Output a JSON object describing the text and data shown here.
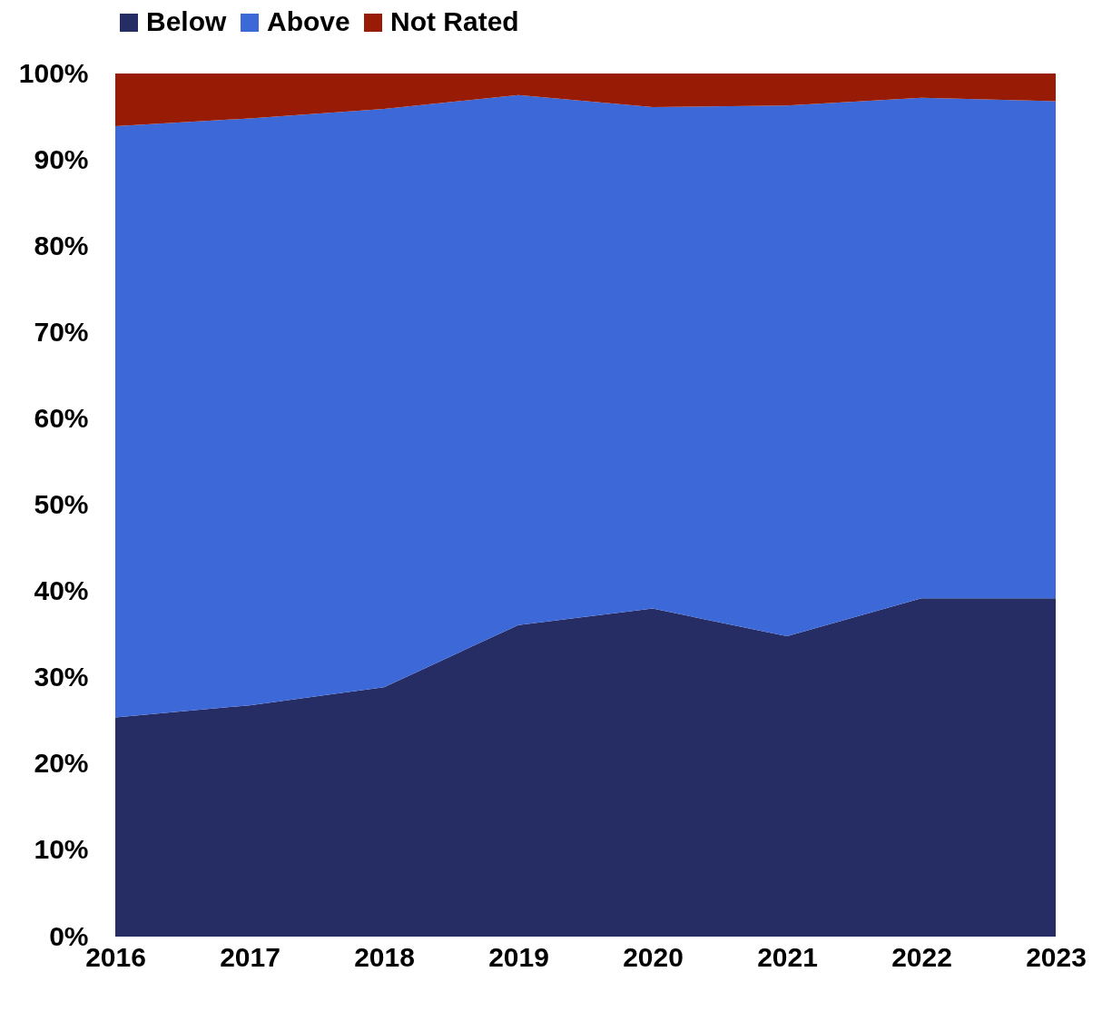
{
  "chart_data": {
    "type": "area",
    "stacked": true,
    "legend": "top",
    "grid": false,
    "categories": [
      "2016",
      "2017",
      "2018",
      "2019",
      "2020",
      "2021",
      "2022",
      "2023"
    ],
    "series": [
      {
        "name": "Below",
        "color": "#252d64",
        "values": [
          25.4,
          26.8,
          28.9,
          36.1,
          38.0,
          34.8,
          39.2,
          39.2
        ]
      },
      {
        "name": "Above",
        "color": "#3d68d8",
        "values": [
          68.5,
          68.0,
          67.0,
          61.4,
          58.1,
          61.5,
          58.0,
          57.6
        ]
      },
      {
        "name": "Not Rated",
        "color": "#981c05",
        "values": [
          6.1,
          5.2,
          4.1,
          2.5,
          3.9,
          3.7,
          2.8,
          3.2
        ]
      }
    ],
    "ylim": [
      0,
      100
    ],
    "yticks": [
      {
        "value": 0,
        "label": "0%"
      },
      {
        "value": 10,
        "label": "10%"
      },
      {
        "value": 20,
        "label": "20%"
      },
      {
        "value": 30,
        "label": "30%"
      },
      {
        "value": 40,
        "label": "40%"
      },
      {
        "value": 50,
        "label": "50%"
      },
      {
        "value": 60,
        "label": "60%"
      },
      {
        "value": 70,
        "label": "70%"
      },
      {
        "value": 80,
        "label": "80%"
      },
      {
        "value": 90,
        "label": "90%"
      },
      {
        "value": 100,
        "label": "100%"
      }
    ]
  }
}
